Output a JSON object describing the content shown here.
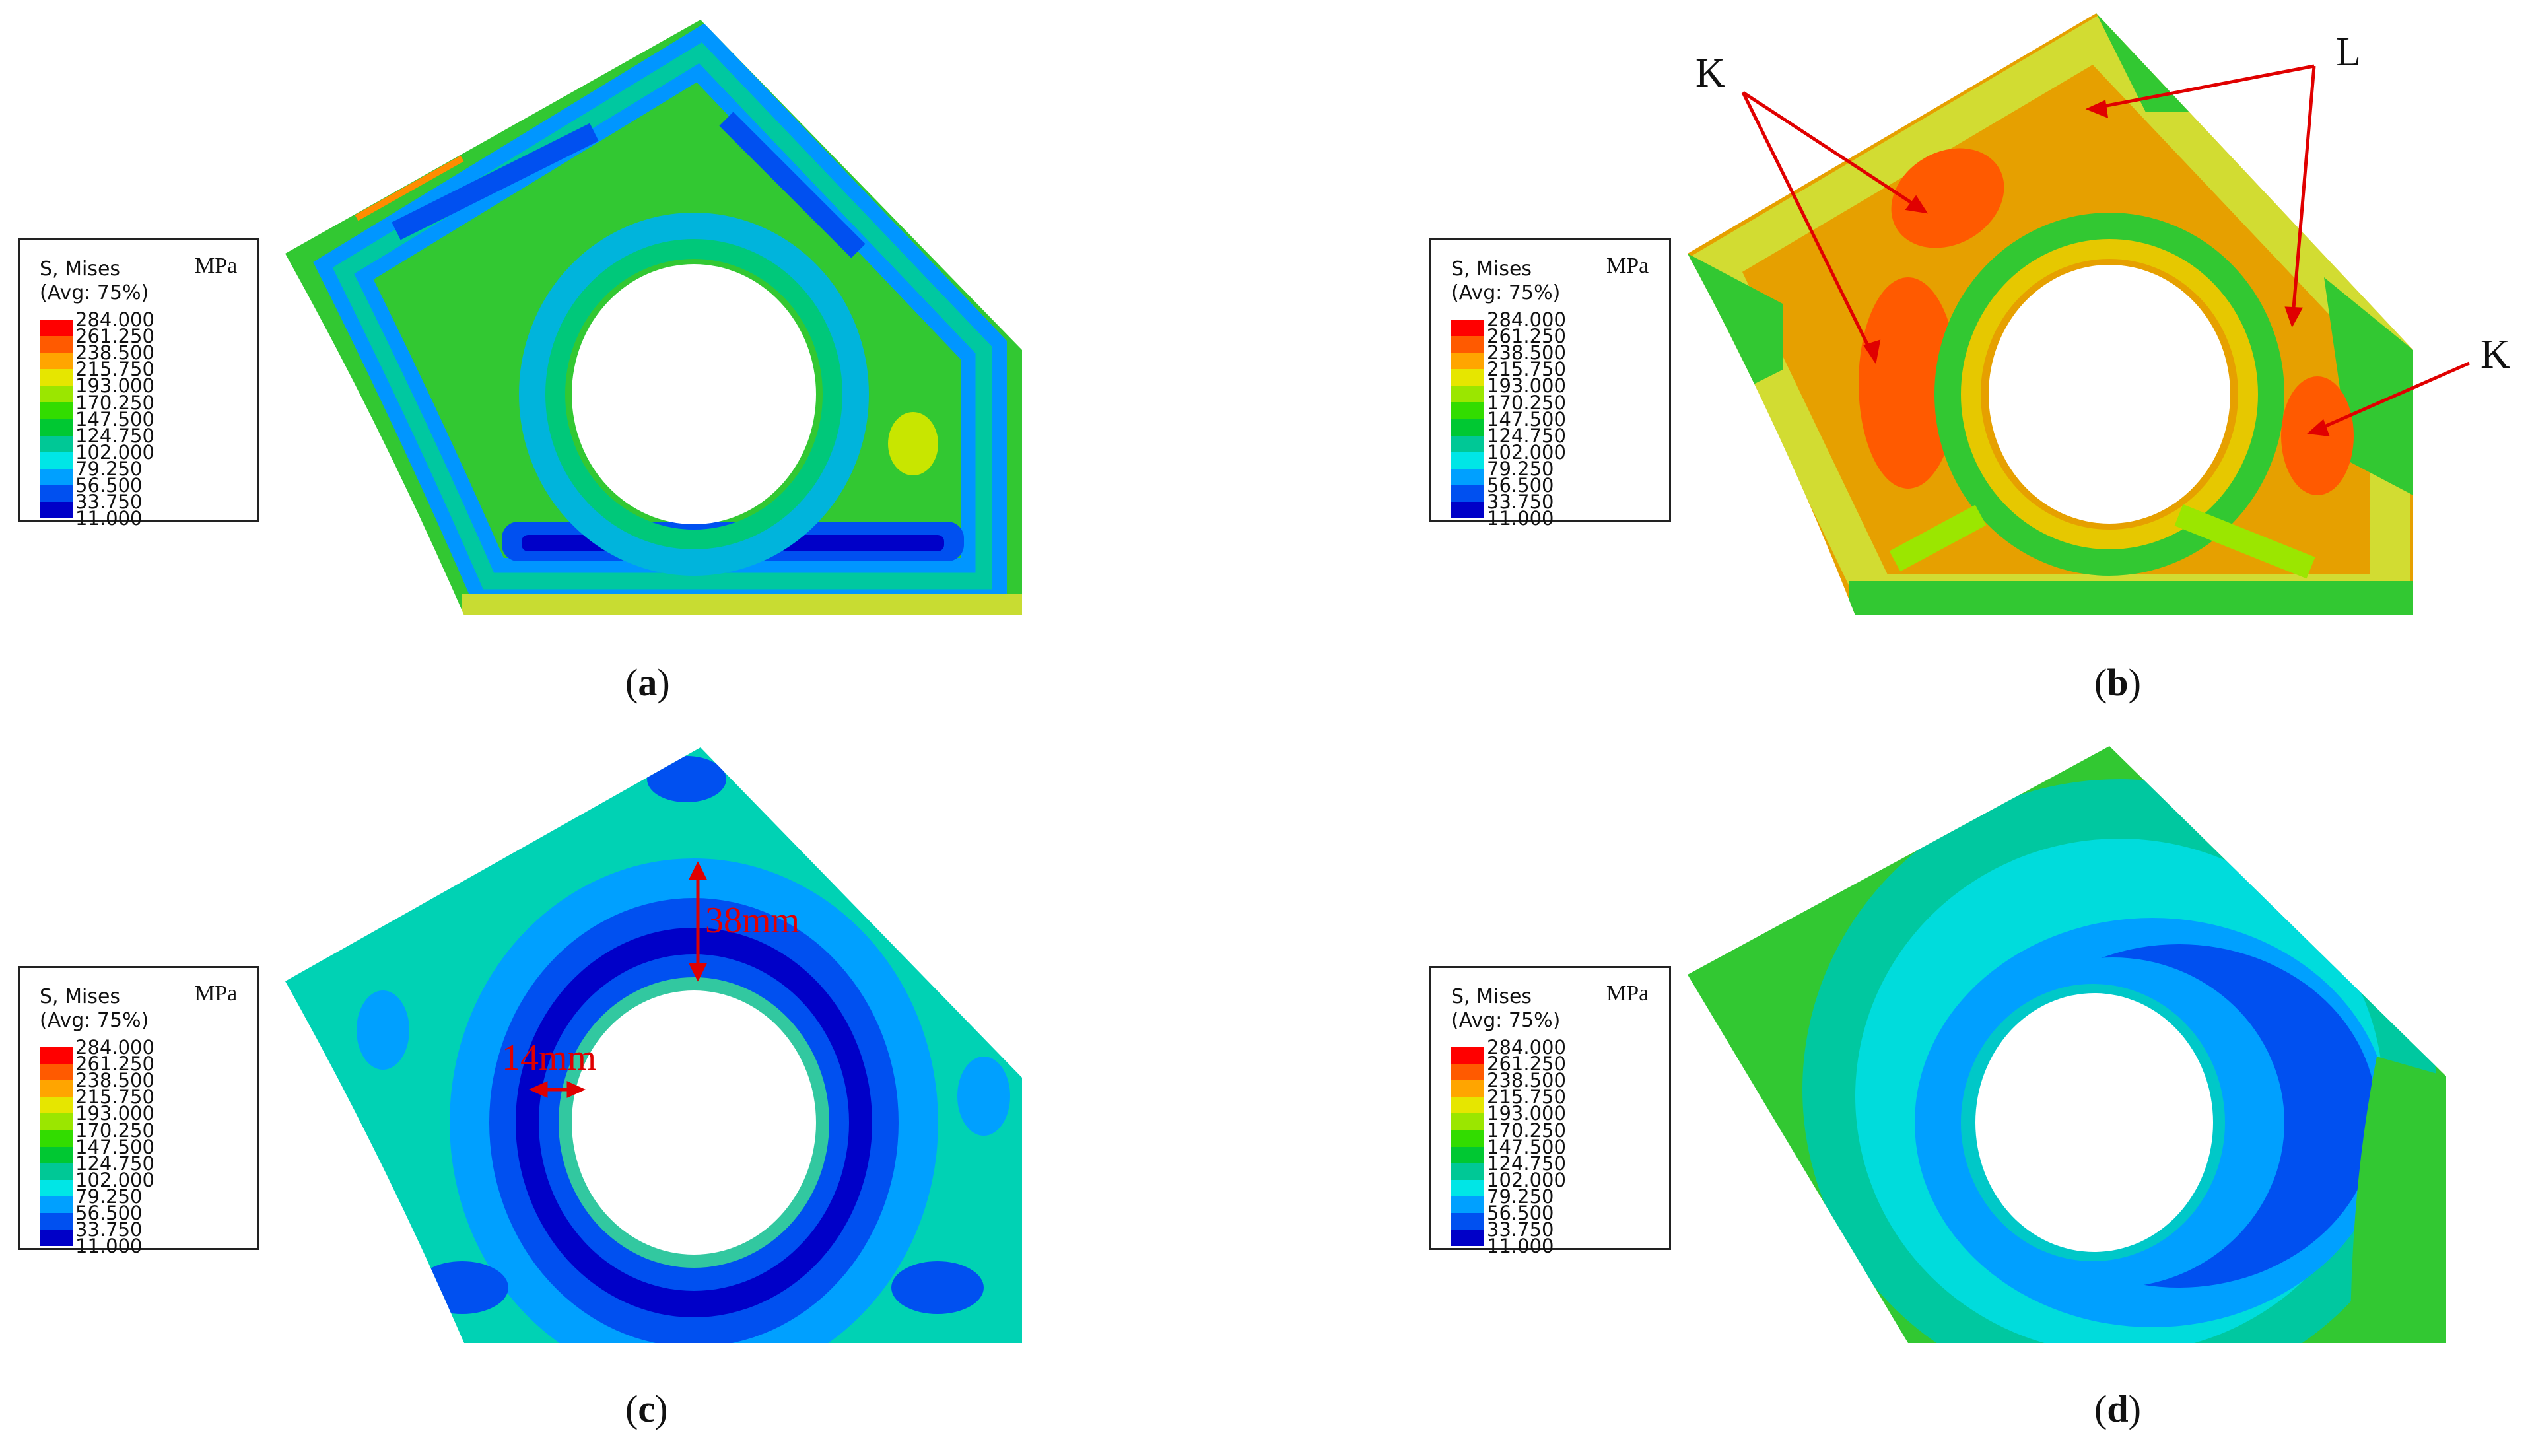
{
  "legend": {
    "title_line1": "S, Mises",
    "title_line2": "(Avg: 75%)",
    "unit": "MPa",
    "values": [
      "284.000",
      "261.250",
      "238.500",
      "215.750",
      "193.000",
      "170.250",
      "147.500",
      "124.750",
      "102.000",
      "79.250",
      "56.500",
      "33.750",
      "11.000"
    ],
    "colors": [
      "#ff0000",
      "#ff5a00",
      "#ffa500",
      "#e6e600",
      "#9be600",
      "#32dc00",
      "#00c832",
      "#00c896",
      "#00e6e6",
      "#00a0ff",
      "#0050f0",
      "#0000c8"
    ]
  },
  "panels": {
    "a": {
      "caption_letter": "a"
    },
    "b": {
      "caption_letter": "b"
    },
    "c": {
      "caption_letter": "c"
    },
    "d": {
      "caption_letter": "d"
    }
  },
  "annotations": {
    "b_K1": "K",
    "b_L": "L",
    "b_K2": "K",
    "c_dim1": "38mm",
    "c_dim2": "14mm"
  },
  "colors": {
    "annotation_red": "#e00000"
  }
}
